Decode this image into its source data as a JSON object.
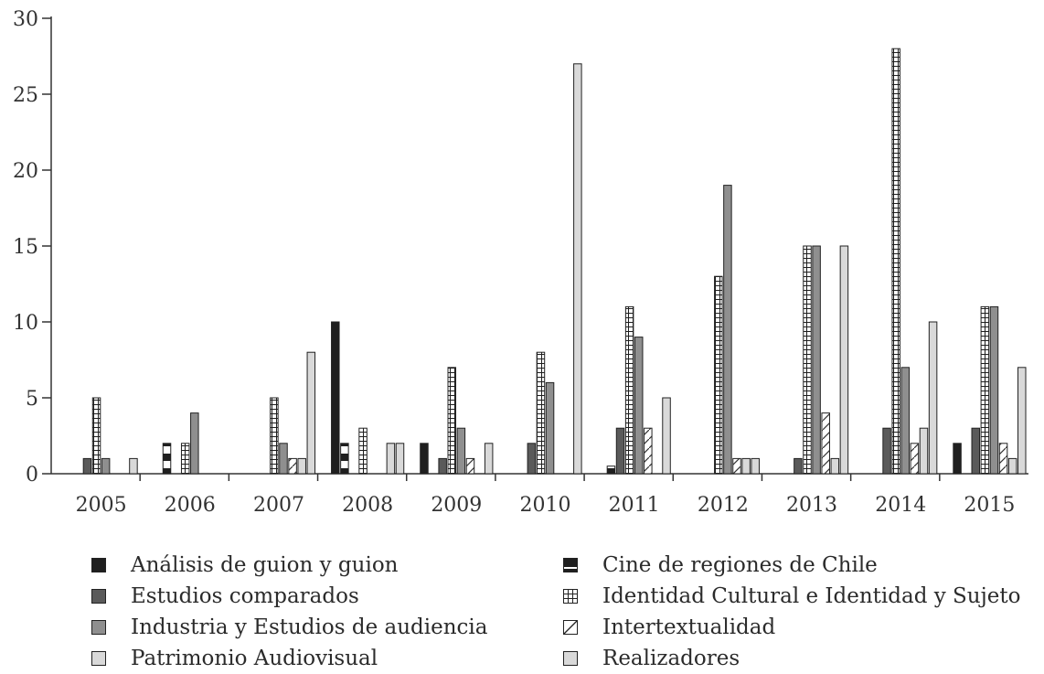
{
  "chart_data": {
    "type": "bar",
    "categories": [
      "2005",
      "2006",
      "2007",
      "2008",
      "2009",
      "2010",
      "2011",
      "2012",
      "2013",
      "2014",
      "2015"
    ],
    "ylim": [
      0,
      30
    ],
    "yticks": [
      0,
      5,
      10,
      15,
      20,
      25,
      30
    ],
    "grid": false,
    "legend_position": "bottom",
    "series": [
      {
        "name": "Análisis de guion y guion",
        "pattern": "solid-black",
        "values": [
          0,
          0,
          0,
          10,
          2,
          0,
          0,
          0,
          0,
          0,
          2
        ]
      },
      {
        "name": "Cine de regiones de Chile",
        "pattern": "black-white-stripe",
        "values": [
          0,
          2,
          0,
          2,
          0,
          0,
          0.5,
          0,
          0,
          0,
          0
        ]
      },
      {
        "name": "Estudios comparados",
        "pattern": "dark-gray",
        "values": [
          1,
          0,
          0,
          0,
          1,
          2,
          3,
          0,
          1,
          3,
          3
        ]
      },
      {
        "name": "Identidad Cultural e Identidad y Sujeto",
        "pattern": "grid",
        "values": [
          5,
          2,
          5,
          3,
          7,
          8,
          11,
          13,
          15,
          28,
          11
        ]
      },
      {
        "name": "Industria y Estudios de audiencia",
        "pattern": "medium-gray",
        "values": [
          1,
          4,
          2,
          0,
          3,
          6,
          9,
          19,
          15,
          7,
          11
        ]
      },
      {
        "name": "Intertextualidad",
        "pattern": "diagonal",
        "values": [
          0,
          0,
          1,
          0,
          1,
          0,
          3,
          1,
          4,
          2,
          2
        ]
      },
      {
        "name": "Patrimonio Audiovisual",
        "pattern": "light-gray",
        "values": [
          0,
          0,
          1,
          2,
          0,
          0,
          0,
          1,
          1,
          3,
          1
        ]
      },
      {
        "name": "Realizadores",
        "pattern": "light-gray",
        "values": [
          1,
          0,
          8,
          2,
          2,
          27,
          5,
          1,
          15,
          10,
          7
        ]
      }
    ],
    "legend_layout": {
      "left": [
        "Análisis de guion y guion",
        "Estudios comparados",
        "Industria y Estudios de audiencia",
        "Patrimonio Audiovisual"
      ],
      "right": [
        "Cine de regiones de Chile",
        "Identidad Cultural e Identidad y Sujeto",
        "Intertextualidad",
        "Realizadores"
      ]
    },
    "title": "",
    "xlabel": "",
    "ylabel": ""
  },
  "colors": {
    "solid-black": "#1f1f1f",
    "dark-gray": "#5a5a5a",
    "medium-gray": "#8f8f8f",
    "light-gray": "#d9d9d9"
  }
}
